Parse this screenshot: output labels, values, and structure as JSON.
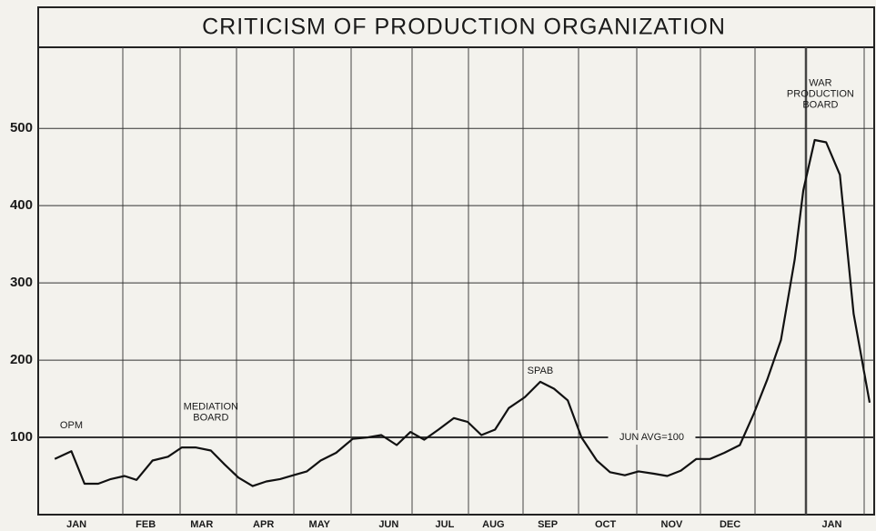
{
  "chart_data": {
    "type": "line",
    "title": "CRITICISM OF PRODUCTION ORGANIZATION",
    "x": [
      -0.19,
      0.1,
      0.33,
      0.57,
      0.79,
      1.03,
      1.24,
      1.52,
      1.79,
      2.03,
      2.27,
      2.54,
      2.78,
      3.02,
      3.27,
      3.51,
      3.75,
      3.98,
      4.22,
      4.46,
      4.73,
      5.02,
      5.29,
      5.52,
      5.79,
      6.03,
      6.27,
      6.52,
      6.79,
      7.03,
      7.27,
      7.51,
      7.75,
      8.03,
      8.3,
      8.54,
      8.78,
      9.02,
      9.29,
      9.52,
      9.78,
      10.02,
      10.29,
      10.52,
      10.76,
      11.03,
      11.27,
      11.52,
      11.79,
      12.03,
      12.27,
      12.51,
      12.75,
      12.9,
      13.1,
      13.3,
      13.54,
      13.78,
      14.06
    ],
    "values": [
      72,
      82,
      40,
      40,
      46,
      50,
      45,
      70,
      75,
      87,
      87,
      83,
      65,
      48,
      37,
      43,
      46,
      51,
      56,
      70,
      80,
      98,
      100,
      103,
      90,
      107,
      97,
      110,
      125,
      120,
      103,
      110,
      138,
      152,
      172,
      163,
      148,
      100,
      70,
      55,
      51,
      56,
      53,
      50,
      57,
      72,
      72,
      80,
      90,
      130,
      175,
      226,
      330,
      420,
      485,
      482,
      440,
      260,
      145
    ],
    "color": "#111111",
    "xlim": [
      -0.48,
      14.14
    ],
    "ylim": [
      0,
      605
    ],
    "yticks": [
      100,
      200,
      300,
      400,
      500
    ],
    "xticks": [
      {
        "value": 0.19,
        "label": "JAN"
      },
      {
        "value": 1.4,
        "label": "FEB"
      },
      {
        "value": 2.38,
        "label": "MAR"
      },
      {
        "value": 3.46,
        "label": "APR"
      },
      {
        "value": 4.44,
        "label": "MAY"
      },
      {
        "value": 5.65,
        "label": "JUN"
      },
      {
        "value": 6.63,
        "label": "JUL"
      },
      {
        "value": 7.48,
        "label": "AUG"
      },
      {
        "value": 8.43,
        "label": "SEP"
      },
      {
        "value": 9.44,
        "label": "OCT"
      },
      {
        "value": 10.6,
        "label": "NOV"
      },
      {
        "value": 11.62,
        "label": "DEC"
      },
      {
        "value": 13.4,
        "label": "JAN"
      }
    ],
    "grid": true,
    "annotations": [
      {
        "lines": [
          "OPM"
        ],
        "x": 0.1,
        "y": 115
      },
      {
        "lines": [
          "MEDIATION",
          "BOARD"
        ],
        "x": 2.54,
        "y": 125
      },
      {
        "lines": [
          "SPAB"
        ],
        "x": 8.3,
        "y": 186
      },
      {
        "lines": [
          "JUN  AVG=100"
        ],
        "x": 10.25,
        "y": 100
      },
      {
        "lines": [
          "WAR",
          "PRODUCTION",
          "BOARD"
        ],
        "x": 13.2,
        "y": 530
      }
    ]
  }
}
